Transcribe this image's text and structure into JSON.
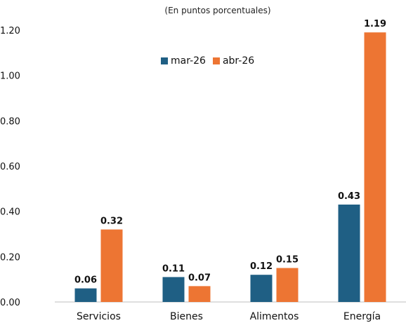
{
  "chart_data": {
    "type": "bar",
    "subtitle": "(En puntos porcentuales)",
    "categories": [
      "Servicios",
      "Bienes",
      "Alimentos",
      "Energía"
    ],
    "series": [
      {
        "name": "mar-26",
        "color": "#1f5f84",
        "values": [
          0.06,
          0.11,
          0.12,
          0.43
        ],
        "labels": [
          "0.06",
          "0.11",
          "0.12",
          "0.43"
        ]
      },
      {
        "name": "abr-26",
        "color": "#ed7533",
        "values": [
          0.32,
          0.07,
          0.15,
          1.19
        ],
        "labels": [
          "0.32",
          "0.07",
          "0.15",
          "1.19"
        ]
      }
    ],
    "ylim": [
      0,
      1.2
    ],
    "yticks": [
      "0.00",
      "0.20",
      "0.40",
      "0.60",
      "0.80",
      "1.00",
      "1.20"
    ],
    "legend_position": "top-center",
    "grid": false
  }
}
